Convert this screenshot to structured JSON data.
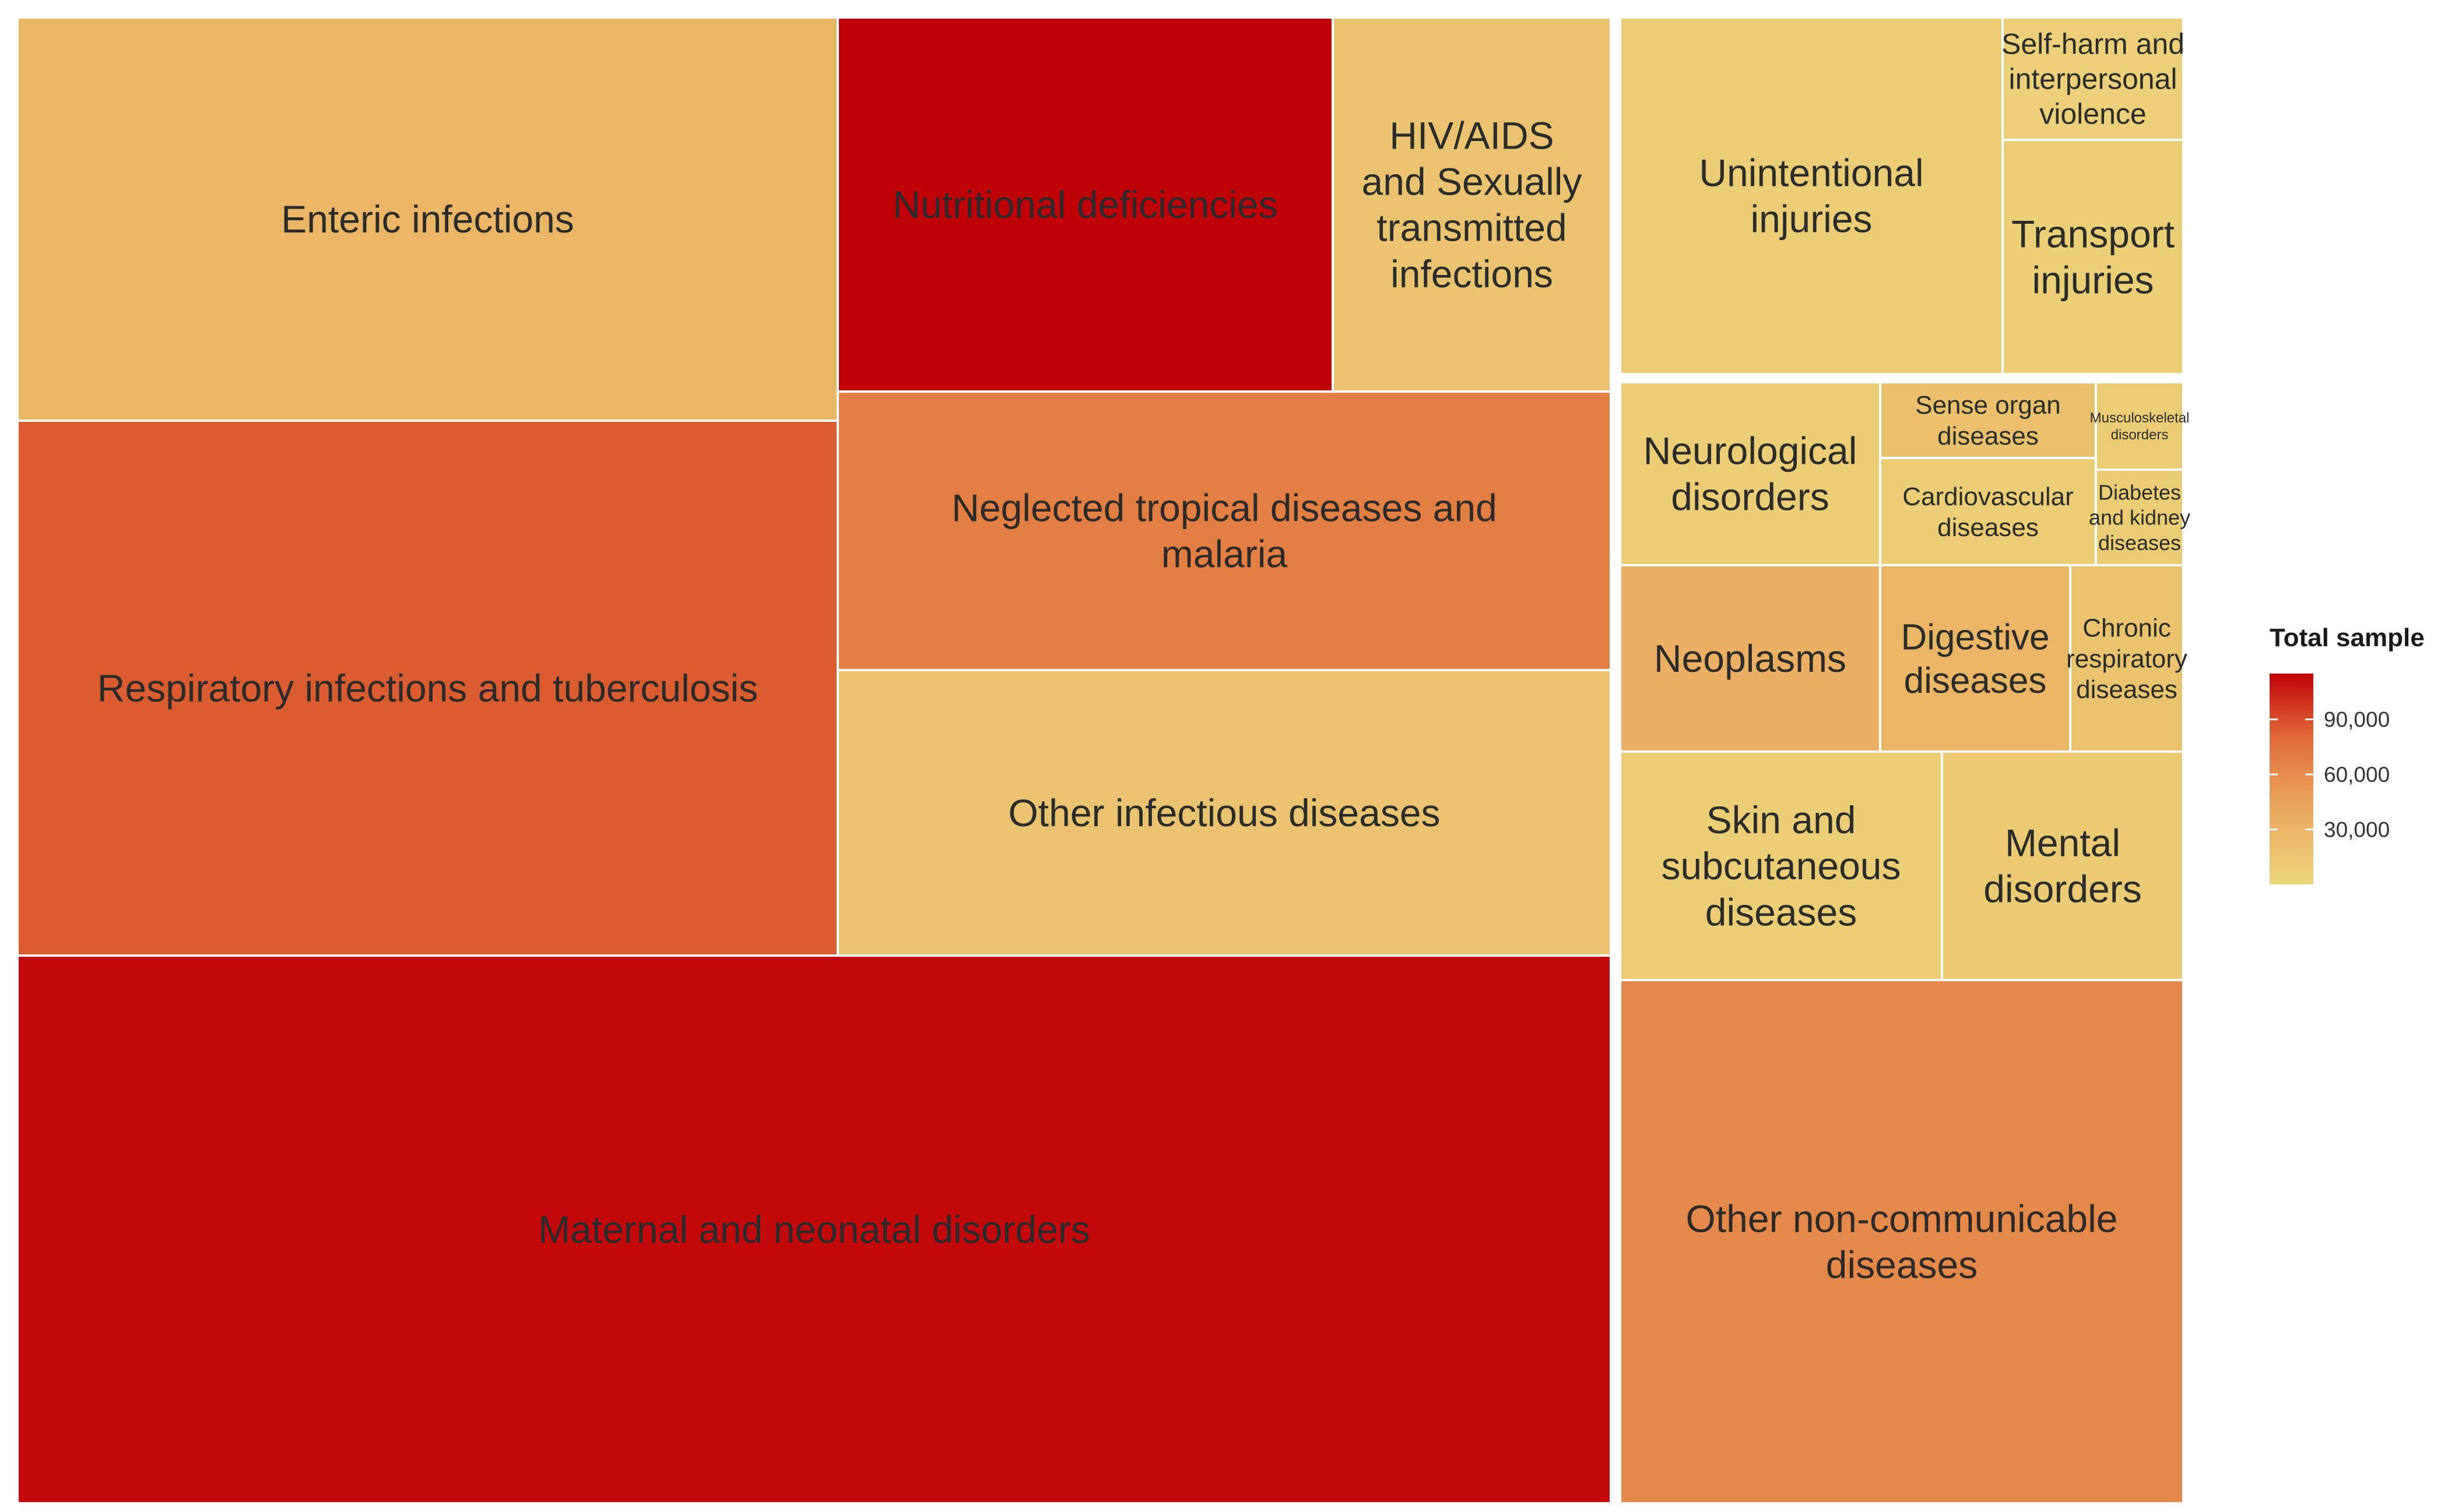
{
  "chart_data": {
    "type": "treemap",
    "legend": {
      "title": "Total sample",
      "ticks": [
        {
          "value": 30000,
          "label": "30,000"
        },
        {
          "value": 60000,
          "label": "60,000"
        },
        {
          "value": 90000,
          "label": "90,000"
        }
      ],
      "range": [
        0,
        115000
      ],
      "low_color": "#ecd67c",
      "mid_color": "#eaa35a",
      "high_color": "#c00008",
      "placement": "right"
    },
    "groups": [
      {
        "name": "",
        "cells": [
          {
            "label": "Enteric infections",
            "value": 30000
          },
          {
            "label": "Respiratory infections and tuberculosis",
            "value": 85000
          },
          {
            "label": "Nutritional deficiencies",
            "value": 115000
          },
          {
            "label": "HIV/AIDS and Sexually transmitted infections",
            "value": 18000
          },
          {
            "label": "Neglected tropical diseases and malaria",
            "value": 68000
          },
          {
            "label": "Other infectious diseases",
            "value": 18000
          },
          {
            "label": "Maternal and neonatal disorders",
            "value": 112000
          }
        ]
      },
      {
        "name": "",
        "cells": [
          {
            "label": "Unintentional injuries",
            "value": 8000
          },
          {
            "label": "Self-harm and interpersonal violence",
            "value": 6000
          },
          {
            "label": "Transport injuries",
            "value": 7000
          }
        ]
      },
      {
        "name": "",
        "cells": [
          {
            "label": "Neurological disorders",
            "value": 9000
          },
          {
            "label": "Sense organ diseases",
            "value": 20000
          },
          {
            "label": "Musculoskeletal disorders",
            "value": 10000
          },
          {
            "label": "Cardiovascular diseases",
            "value": 9000
          },
          {
            "label": "Diabetes and kidney diseases",
            "value": 10000
          },
          {
            "label": "Neoplasms",
            "value": 35000
          },
          {
            "label": "Digestive diseases",
            "value": 30000
          },
          {
            "label": "Chronic respiratory diseases",
            "value": 17000
          },
          {
            "label": "Skin and subcutaneous diseases",
            "value": 8000
          },
          {
            "label": "Mental disorders",
            "value": 11000
          },
          {
            "label": "Other non-communicable diseases",
            "value": 62000
          }
        ]
      }
    ]
  }
}
